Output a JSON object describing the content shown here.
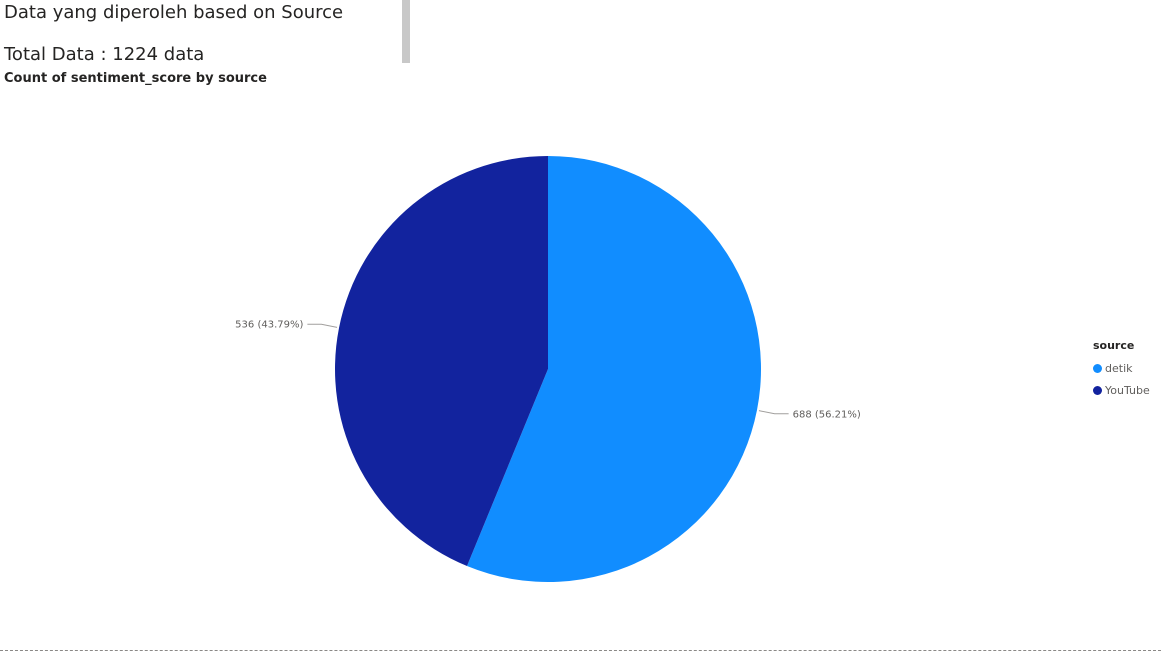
{
  "header": {
    "title": "Data yang diperoleh based on Source",
    "total": "Total Data : 1224 data"
  },
  "chart_data": {
    "type": "pie",
    "title": "Count of sentiment_score by source",
    "legend_title": "source",
    "legend_position": "right",
    "slices": [
      {
        "label": "detik",
        "value": 688,
        "percent": 56.21,
        "display": "688 (56.21%)",
        "color": "#118dff"
      },
      {
        "label": "YouTube",
        "value": 536,
        "percent": 43.79,
        "display": "536 (43.79%)",
        "color": "#12239e"
      }
    ]
  }
}
